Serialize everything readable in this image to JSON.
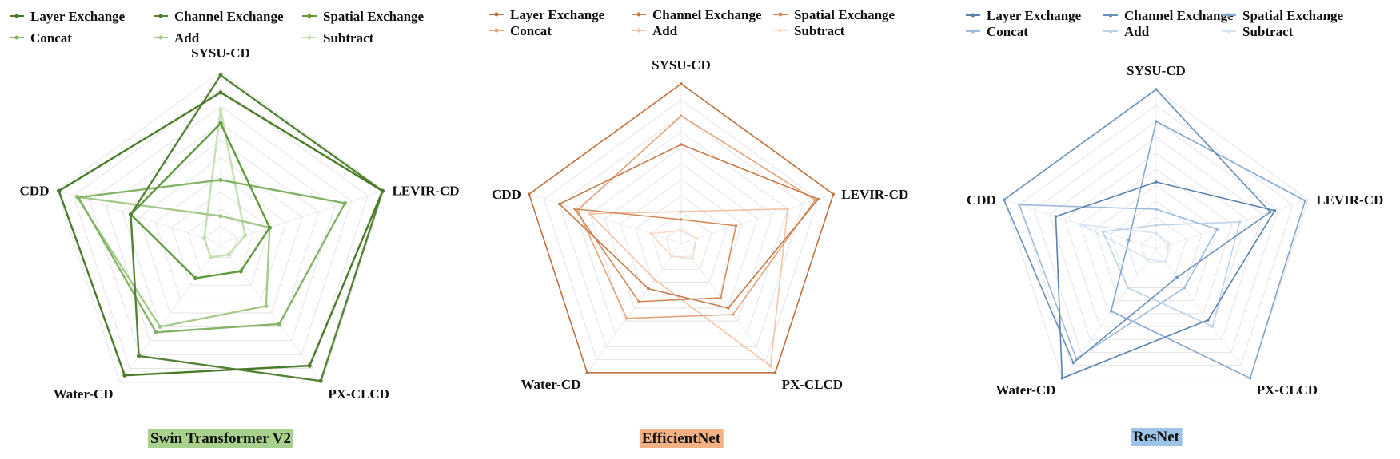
{
  "chart_data": [
    {
      "type": "radar",
      "title": "Swin Transformer V2",
      "title_bg": "#a9d18e",
      "axes": [
        "SYSU-CD",
        "LEVIR-CD",
        "PX-CLCD",
        "Water-CD",
        "CDD"
      ],
      "rmax": 1.0,
      "grid": true,
      "legend_position": "top",
      "series": [
        {
          "name": "Layer Exchange",
          "color": "#4a7a28",
          "values": [
            0.88,
            0.99,
            0.88,
            0.95,
            0.99
          ]
        },
        {
          "name": "Channel Exchange",
          "color": "#548235",
          "values": [
            0.98,
            0.99,
            0.99,
            0.81,
            0.55
          ]
        },
        {
          "name": "Spatial Exchange",
          "color": "#5e9a3a",
          "values": [
            0.7,
            0.3,
            0.2,
            0.25,
            0.55
          ]
        },
        {
          "name": "Concat",
          "color": "#82b366",
          "values": [
            0.37,
            0.76,
            0.58,
            0.64,
            0.87
          ]
        },
        {
          "name": "Add",
          "color": "#a5c98b",
          "values": [
            0.16,
            0.3,
            0.45,
            0.6,
            0.88
          ]
        },
        {
          "name": "Subtract",
          "color": "#c5dfb2",
          "values": [
            0.78,
            0.15,
            0.08,
            0.1,
            0.1
          ]
        }
      ]
    },
    {
      "type": "radar",
      "title": "EfficientNet",
      "title_bg": "#f4b183",
      "axes": [
        "SYSU-CD",
        "LEVIR-CD",
        "PX-CLCD",
        "Water-CD",
        "CDD"
      ],
      "rmax": 1.0,
      "grid": true,
      "legend_position": "top",
      "series": [
        {
          "name": "Layer Exchange",
          "color": "#c0703c",
          "values": [
            1.0,
            1.0,
            1.0,
            1.0,
            1.0
          ]
        },
        {
          "name": "Channel Exchange",
          "color": "#c87a48",
          "values": [
            0.62,
            0.9,
            0.5,
            0.35,
            0.8
          ]
        },
        {
          "name": "Spatial Exchange",
          "color": "#d38a5a",
          "values": [
            0.15,
            0.36,
            0.42,
            0.45,
            0.7
          ]
        },
        {
          "name": "Concat",
          "color": "#e3a37a",
          "values": [
            0.8,
            0.88,
            0.55,
            0.58,
            0.68
          ]
        },
        {
          "name": "Add",
          "color": "#f2c4a6",
          "values": [
            0.2,
            0.7,
            0.95,
            0.28,
            0.6
          ]
        },
        {
          "name": "Subtract",
          "color": "#f8dccb",
          "values": [
            0.08,
            0.1,
            0.12,
            0.1,
            0.2
          ]
        }
      ]
    },
    {
      "type": "radar",
      "title": "ResNet",
      "title_bg": "#9dc3e6",
      "axes": [
        "SYSU-CD",
        "LEVIR-CD",
        "PX-CLCD",
        "Water-CD",
        "CDD"
      ],
      "rmax": 1.0,
      "grid": true,
      "legend_position": "top",
      "series": [
        {
          "name": "Layer Exchange",
          "color": "#5b82ad",
          "values": [
            0.42,
            0.78,
            0.55,
            1.0,
            0.66
          ]
        },
        {
          "name": "Channel Exchange",
          "color": "#6b90ba",
          "values": [
            1.0,
            0.75,
            0.22,
            0.88,
            1.0
          ]
        },
        {
          "name": "Spatial Exchange",
          "color": "#84a6cc",
          "values": [
            0.8,
            0.98,
            1.0,
            0.48,
            0.18
          ]
        },
        {
          "name": "Concat",
          "color": "#9ebbdc",
          "values": [
            0.25,
            0.4,
            0.3,
            0.85,
            0.9
          ]
        },
        {
          "name": "Add",
          "color": "#bed2ea",
          "values": [
            0.15,
            0.55,
            0.6,
            0.3,
            0.35
          ]
        },
        {
          "name": "Subtract",
          "color": "#d7e4f3",
          "values": [
            0.1,
            0.08,
            0.1,
            0.08,
            0.5
          ]
        }
      ]
    }
  ]
}
